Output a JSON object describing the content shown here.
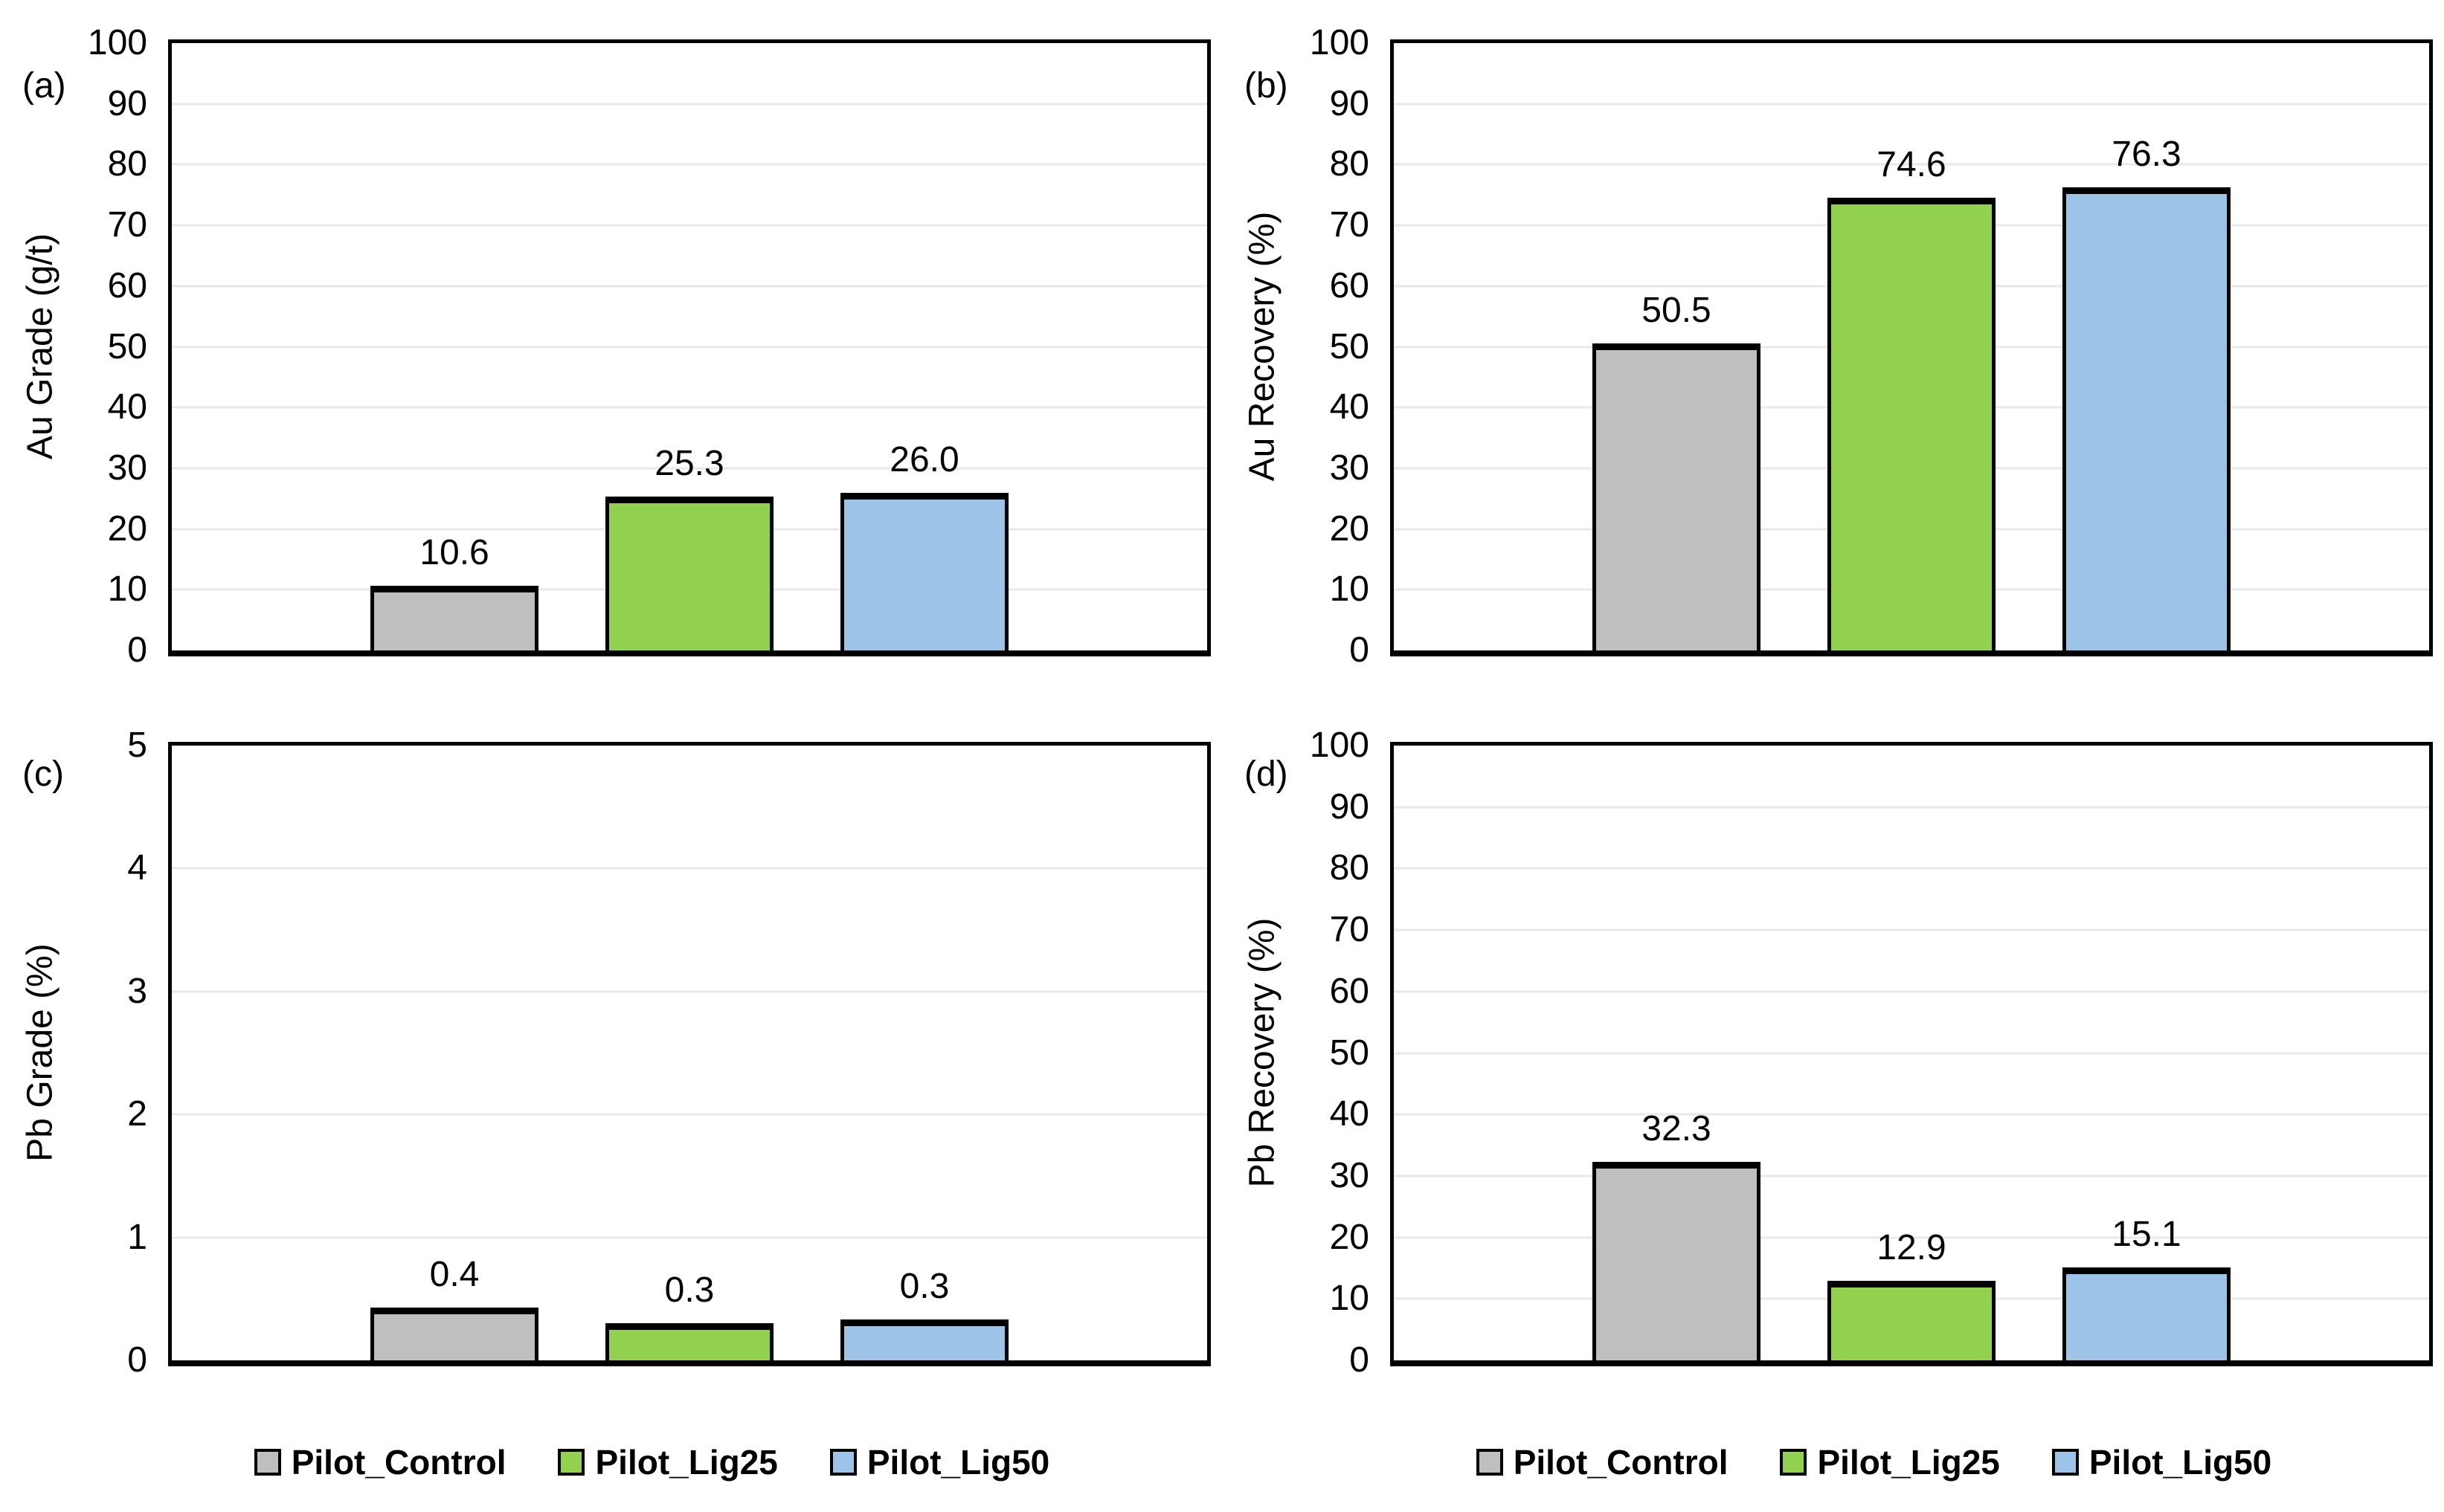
{
  "figure": {
    "background": "#FFFFFF",
    "text_color": "#000000",
    "axis_color": "#000000",
    "gridline_color": "#E9E9E9",
    "bar_border_color": "#000000"
  },
  "legend": {
    "position": "bottom",
    "items": [
      {
        "label": "Pilot_Control",
        "color": "#BFBFBF"
      },
      {
        "label": "Pilot_Lig25",
        "color": "#92D050"
      },
      {
        "label": "Pilot_Lig50",
        "color": "#9DC3E6"
      }
    ]
  },
  "chart_data": [
    {
      "id": "a",
      "type": "bar",
      "panel_label": "(a)",
      "ylabel": "Au Grade (g/t)",
      "ylim": [
        0,
        100
      ],
      "ytick_interval": 10,
      "yticks": [
        100,
        90,
        80,
        70,
        60,
        50,
        40,
        30,
        20,
        10,
        0
      ],
      "grid": true,
      "categories": [
        "Pilot_Control",
        "Pilot_Lig25",
        "Pilot_Lig50"
      ],
      "values": [
        10.6,
        25.3,
        26.0
      ],
      "data_labels": [
        "10.6",
        "25.3",
        "26.0"
      ],
      "render_values": [
        10.6,
        25.3,
        26.0
      ]
    },
    {
      "id": "b",
      "type": "bar",
      "panel_label": "(b)",
      "ylabel": "Au Recovery (%)",
      "ylim": [
        0,
        100
      ],
      "ytick_interval": 10,
      "yticks": [
        100,
        90,
        80,
        70,
        60,
        50,
        40,
        30,
        20,
        10,
        0
      ],
      "grid": true,
      "categories": [
        "Pilot_Control",
        "Pilot_Lig25",
        "Pilot_Lig50"
      ],
      "values": [
        50.5,
        74.6,
        76.3
      ],
      "data_labels": [
        "50.5",
        "74.6",
        "76.3"
      ],
      "render_values": [
        50.5,
        74.6,
        76.3
      ]
    },
    {
      "id": "c",
      "type": "bar",
      "panel_label": "(c)",
      "ylabel": "Pb Grade (%)",
      "ylim": [
        0,
        5
      ],
      "ytick_interval": 1,
      "yticks": [
        5,
        4,
        3,
        2,
        1,
        0
      ],
      "grid": true,
      "categories": [
        "Pilot_Control",
        "Pilot_Lig25",
        "Pilot_Lig50"
      ],
      "values": [
        0.4,
        0.3,
        0.3
      ],
      "data_labels": [
        "0.4",
        "0.3",
        "0.3"
      ],
      "render_values": [
        0.43,
        0.3,
        0.33
      ]
    },
    {
      "id": "d",
      "type": "bar",
      "panel_label": "(d)",
      "ylabel": "Pb Recovery (%)",
      "ylim": [
        0,
        100
      ],
      "ytick_interval": 10,
      "yticks": [
        100,
        90,
        80,
        70,
        60,
        50,
        40,
        30,
        20,
        10,
        0
      ],
      "grid": true,
      "categories": [
        "Pilot_Control",
        "Pilot_Lig25",
        "Pilot_Lig50"
      ],
      "values": [
        32.3,
        12.9,
        15.1
      ],
      "data_labels": [
        "32.3",
        "12.9",
        "15.1"
      ],
      "render_values": [
        32.3,
        12.9,
        15.1
      ]
    }
  ]
}
